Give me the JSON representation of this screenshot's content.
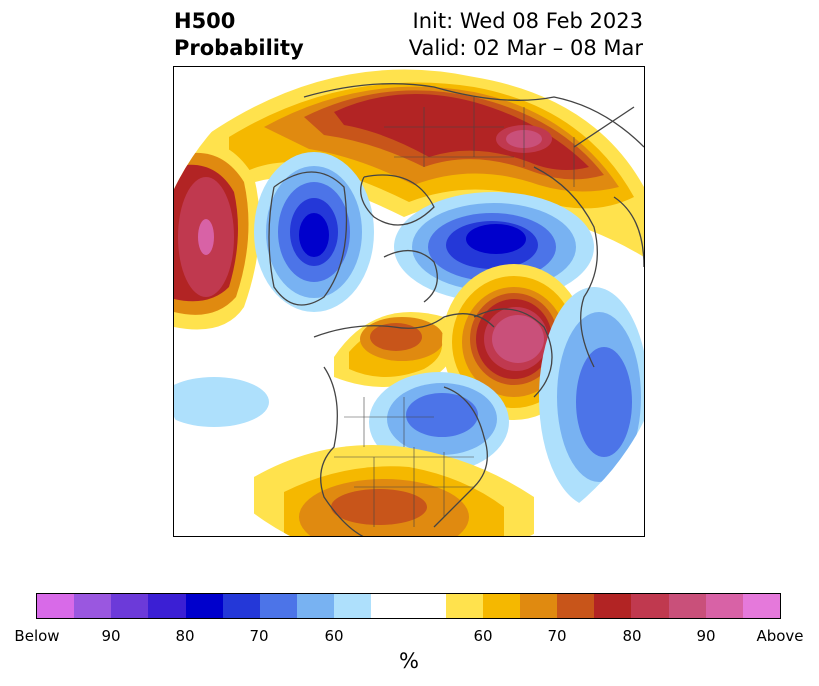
{
  "header": {
    "left_line1": "H500",
    "left_line2": "Probability",
    "right_line1": "Init: Wed 08 Feb 2023",
    "right_line2": "Valid: 02 Mar – 08 Mar"
  },
  "colorbar": {
    "unit": "%",
    "colors": [
      "#d86ae8",
      "#9a57e0",
      "#6c3ad9",
      "#3b1fd4",
      "#0000cc",
      "#2438d8",
      "#4c74e8",
      "#78b2f2",
      "#aee0fc",
      "#ffffff",
      "#ffe24d",
      "#f5b800",
      "#e08a10",
      "#c8551a",
      "#b22424",
      "#c0394f",
      "#c9507a",
      "#d862a6",
      "#e579db"
    ],
    "tick_labels": [
      "Below",
      "90",
      "80",
      "70",
      "60",
      "60",
      "70",
      "80",
      "90",
      "Above"
    ]
  }
}
